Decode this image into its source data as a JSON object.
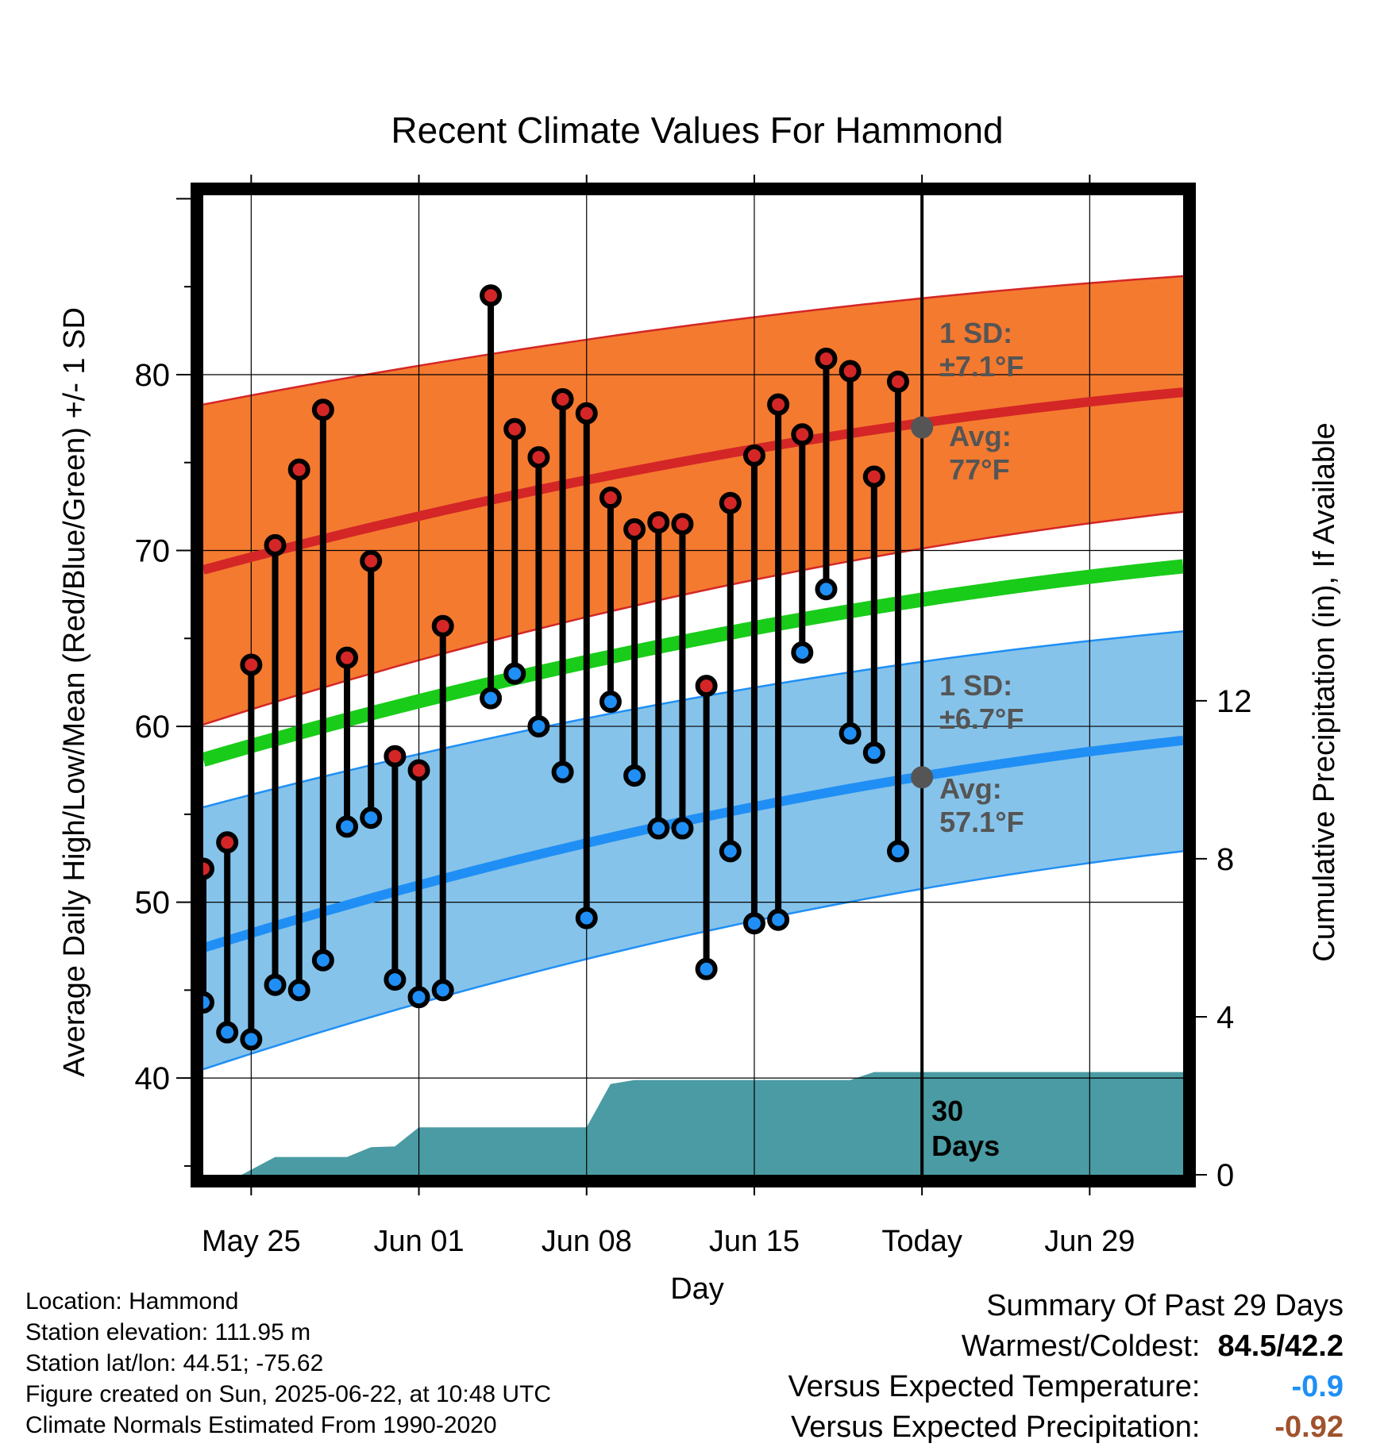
{
  "chart_data": {
    "type": "line",
    "title": "Recent Climate Values For Hammond",
    "xlabel": "Day",
    "ylabel_left": "Average Daily High/Low/Mean (Red/Blue/Green) +/- 1 SD",
    "ylabel_right": "Cumulative Precipitation (in), If Available",
    "x_tick_labels": [
      "May 25",
      "Jun 01",
      "Jun 08",
      "Jun 15",
      "Today",
      "Jun 29"
    ],
    "x_tick_days": [
      2,
      9,
      16,
      23,
      30,
      37
    ],
    "xlim": [
      0,
      40.9
    ],
    "y_left_ticks": [
      40,
      50,
      60,
      70,
      80
    ],
    "ylim_left": [
      34.5,
      90.2
    ],
    "y_right_ticks": [
      0,
      4,
      8,
      12
    ],
    "ylim_right": [
      0,
      24.8
    ],
    "grid": true,
    "normals": {
      "high_mean": [
        68.9,
        79.0
      ],
      "high_upper": [
        78.3,
        85.6
      ],
      "high_lower": [
        60.1,
        72.2
      ],
      "low_mean": [
        47.4,
        59.2
      ],
      "low_upper": [
        55.4,
        65.4
      ],
      "low_lower": [
        40.5,
        52.9
      ],
      "mean": [
        58.1,
        69.1
      ],
      "x_range": [
        0,
        40.9
      ]
    },
    "daily": [
      {
        "day": 0,
        "high": 51.9,
        "low": 44.3
      },
      {
        "day": 1,
        "high": 53.4,
        "low": 42.6
      },
      {
        "day": 2,
        "high": 63.5,
        "low": 42.2
      },
      {
        "day": 3,
        "high": 70.3,
        "low": 45.3
      },
      {
        "day": 4,
        "high": 74.6,
        "low": 45.0
      },
      {
        "day": 5,
        "high": 78.0,
        "low": 46.7
      },
      {
        "day": 6,
        "high": 63.9,
        "low": 54.3
      },
      {
        "day": 7,
        "high": 69.4,
        "low": 54.8
      },
      {
        "day": 8,
        "high": 58.3,
        "low": 45.6
      },
      {
        "day": 9,
        "high": 57.5,
        "low": 44.6
      },
      {
        "day": 10,
        "high": 65.7,
        "low": 45.0
      },
      {
        "day": 12,
        "high": 84.5,
        "low": 61.6
      },
      {
        "day": 13,
        "high": 76.9,
        "low": 63.0
      },
      {
        "day": 14,
        "high": 75.3,
        "low": 60.0
      },
      {
        "day": 15,
        "high": 78.6,
        "low": 57.4
      },
      {
        "day": 16,
        "high": 77.8,
        "low": 49.1
      },
      {
        "day": 17,
        "high": 73.0,
        "low": 61.4
      },
      {
        "day": 18,
        "high": 71.2,
        "low": 57.2
      },
      {
        "day": 19,
        "high": 71.6,
        "low": 54.2
      },
      {
        "day": 20,
        "high": 71.5,
        "low": 54.2
      },
      {
        "day": 21,
        "high": 62.3,
        "low": 46.2
      },
      {
        "day": 22,
        "high": 72.7,
        "low": 52.9
      },
      {
        "day": 23,
        "high": 75.4,
        "low": 48.8
      },
      {
        "day": 24,
        "high": 78.3,
        "low": 49.0
      },
      {
        "day": 25,
        "high": 76.6,
        "low": 64.2
      },
      {
        "day": 26,
        "high": 80.9,
        "low": 67.8
      },
      {
        "day": 27,
        "high": 80.2,
        "low": 59.6
      },
      {
        "day": 28,
        "high": 74.2,
        "low": 58.5
      },
      {
        "day": 29,
        "high": 79.6,
        "low": 52.9
      }
    ],
    "precip_cumulative": {
      "x": [
        0,
        1.6,
        3.0,
        6.0,
        7.0,
        8.0,
        9.0,
        16.0,
        17.0,
        18.0,
        27.0,
        28.0,
        40.9
      ],
      "y": [
        0,
        0,
        0.45,
        0.45,
        0.7,
        0.72,
        1.2,
        1.2,
        2.3,
        2.4,
        2.4,
        2.6,
        2.6
      ]
    },
    "annotations": {
      "high_sd": "1 SD:",
      "high_sd_value": "±7.1°F",
      "high_avg": "Avg:",
      "high_avg_value": "77°F",
      "low_sd": "1 SD:",
      "low_sd_value": "±6.7°F",
      "low_avg": "Avg:",
      "low_avg_value": "57.1°F",
      "period_line1": "30",
      "period_line2": "Days",
      "today_high_avg": 77,
      "today_low_avg": 57.1
    }
  },
  "info": {
    "location": "Location: Hammond",
    "elevation": "Station elevation: 111.95 m",
    "latlon": "Station lat/lon: 44.51; -75.62",
    "created": "Figure created on Sun, 2025-06-22, at 10:48 UTC",
    "normals": "Climate Normals Estimated From 1990-2020"
  },
  "summary": {
    "title": "Summary Of Past 29 Days",
    "warm_cold_label": "Warmest/Coldest:",
    "warm_cold_value": "84.5/42.2",
    "temp_label": "Versus Expected Temperature:",
    "temp_value": "-0.9",
    "precip_label": "Versus Expected Precipitation:",
    "precip_value": "-0.92"
  },
  "colors": {
    "high_band": "#f47a30",
    "high_line": "#d42626",
    "low_band": "#86c3ea",
    "low_line": "#1f8ff5",
    "mean_line": "#19cc19",
    "precip_fill": "#4a9ba3",
    "high_marker": "#d42626",
    "low_marker": "#1f8ff5",
    "annotation_text": "#555555",
    "temp_value": "#1f8ff5",
    "precip_value": "#a0522d"
  }
}
